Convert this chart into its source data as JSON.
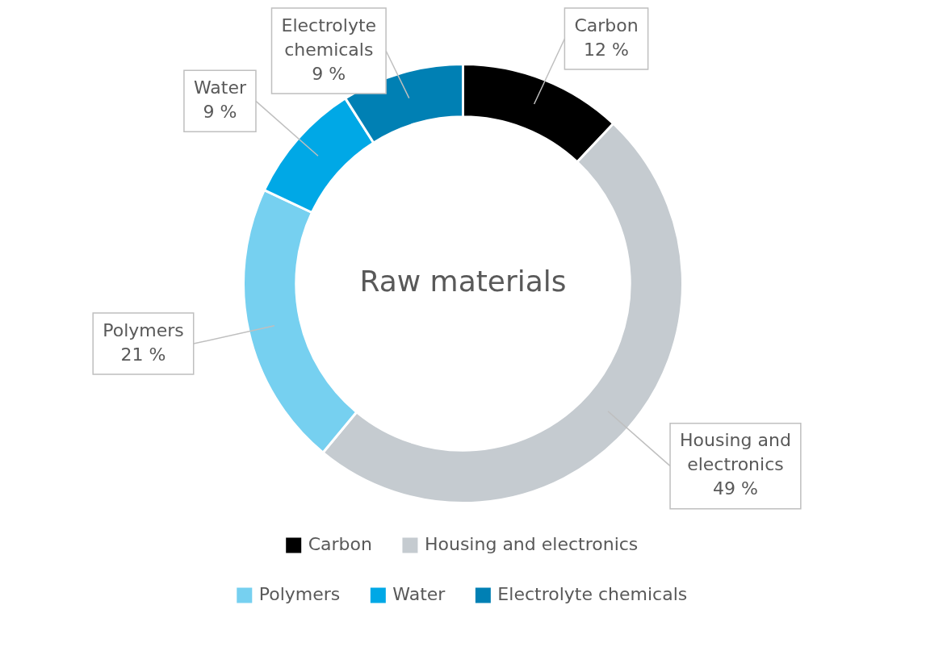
{
  "chart_data": {
    "type": "donut",
    "title": "Raw materials",
    "categories": [
      "Carbon",
      "Housing and electronics",
      "Polymers",
      "Water",
      "Electrolyte chemicals"
    ],
    "values": [
      12,
      49,
      21,
      9,
      9
    ],
    "colors": [
      "#000000",
      "#c5cbd0",
      "#76d0f0",
      "#00a8e6",
      "#0080b4"
    ],
    "value_labels": [
      "12 %",
      "49 %",
      "21 %",
      "9 %",
      "9 %"
    ],
    "legend": "bottom"
  }
}
